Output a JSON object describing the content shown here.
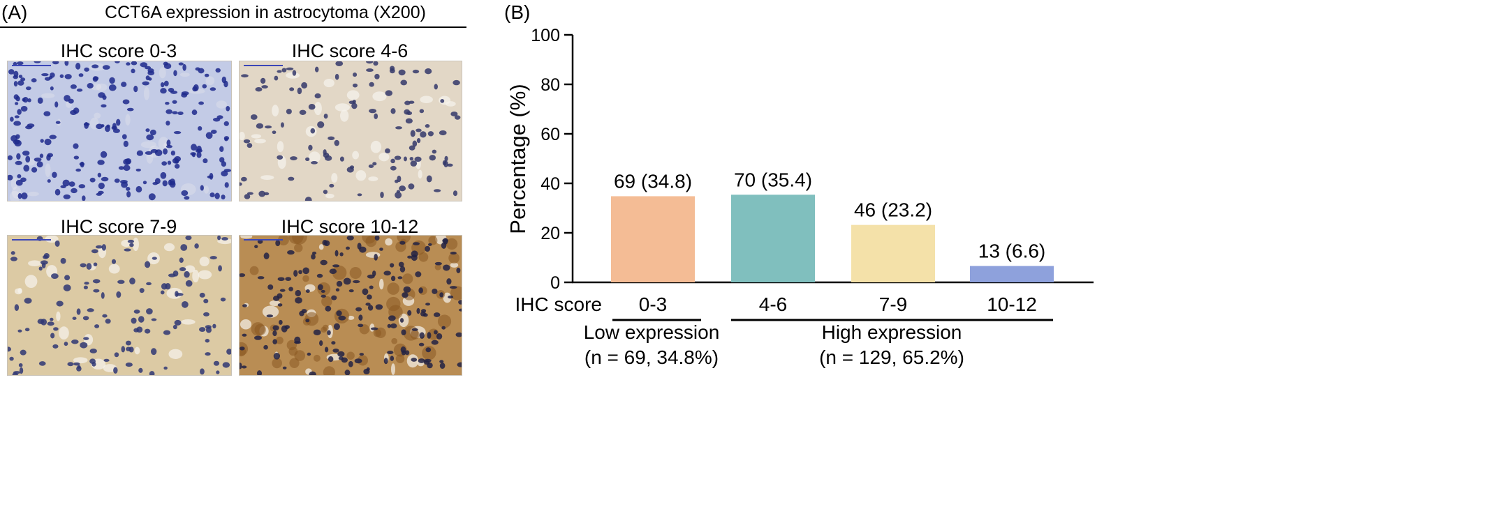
{
  "panel_a": {
    "letter": "(A)",
    "title": "CCT6A expression in astrocytoma (X200)",
    "images": [
      {
        "label": "IHC score 0-3",
        "score": "0-3",
        "bg": "#c3cbe6",
        "nucleus": "#1e2a8c"
      },
      {
        "label": "IHC score 4-6",
        "score": "4-6",
        "bg": "#e2d7c6",
        "nucleus": "#34386a"
      },
      {
        "label": "IHC score 7-9",
        "score": "7-9",
        "bg": "#dccaa4",
        "nucleus": "#2f3774"
      },
      {
        "label": "IHC score 10-12",
        "score": "10-12",
        "bg": "#b98d54",
        "nucleus": "#222244"
      }
    ]
  },
  "panel_b": {
    "letter": "(B)",
    "group_axis_label": "IHC score",
    "groups": [
      {
        "label": "Low expression",
        "n_label": "(n = 69, 34.8%)"
      },
      {
        "label": "High expression",
        "n_label": "(n = 129, 65.2%)"
      }
    ]
  },
  "chart_data": {
    "type": "bar",
    "title": "",
    "xlabel": "IHC score",
    "ylabel": "Percentage (%)",
    "categories": [
      "0-3",
      "4-6",
      "7-9",
      "10-12"
    ],
    "values": [
      34.8,
      35.4,
      23.2,
      6.6
    ],
    "counts": [
      69,
      70,
      46,
      13
    ],
    "data_labels": [
      "69 (34.8)",
      "70 (35.4)",
      "46 (23.2)",
      "13 (6.6)"
    ],
    "colors": [
      "#f4bc95",
      "#80bfbe",
      "#f4e1a9",
      "#8ea1dc"
    ],
    "ylim": [
      0,
      100
    ],
    "yticks": [
      0,
      20,
      40,
      60,
      80,
      100
    ],
    "grid": false
  }
}
